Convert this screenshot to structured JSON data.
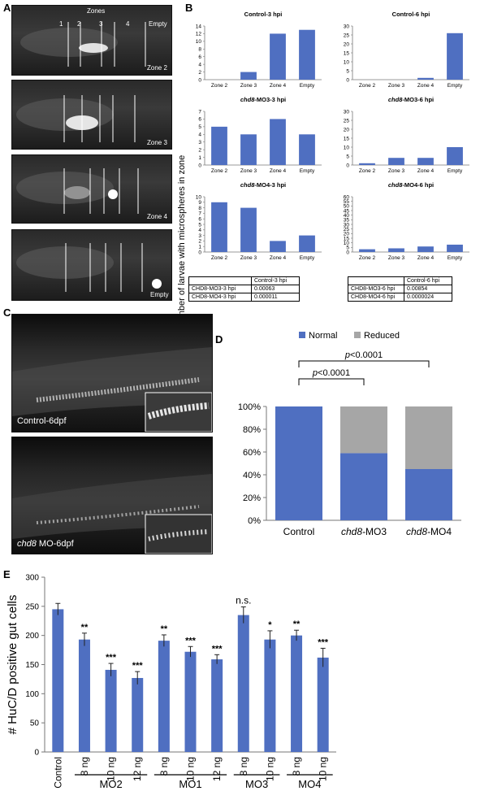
{
  "panels": {
    "A": "A",
    "B": "B",
    "C": "C",
    "D": "D",
    "E": "E"
  },
  "panelA": {
    "zones_title": "Zones",
    "zone_numbers": [
      "1",
      "2",
      "3",
      "4",
      "Empty"
    ],
    "image_labels": [
      "Zone 2",
      "Zone 3",
      "Zone 4",
      "Empty"
    ]
  },
  "panelB": {
    "ylabel": "Number of larvae with microspheres in zone",
    "table_left": {
      "header": [
        "",
        "Control-3 hpi"
      ],
      "rows": [
        [
          "CHD8-MO3-3 hpi",
          "0.00063"
        ],
        [
          "CHD8-MO4-3 hpi",
          "0.000011"
        ]
      ]
    },
    "table_right": {
      "header": [
        "",
        "Control-6 hpi"
      ],
      "rows": [
        [
          "CHD8-MO3-6 hpi",
          "0.00854"
        ],
        [
          "CHD8-MO4-6 hpi",
          "0.0000024"
        ]
      ]
    }
  },
  "panelC": {
    "labels": [
      "Control-6dpf",
      "MO-6dpf"
    ],
    "label_italic": "chd8"
  },
  "panelD": {
    "legend": [
      "Normal",
      "Reduced"
    ],
    "p1": "<0.0001",
    "p2": "<0.0001",
    "p_letter": "p"
  },
  "panelE": {
    "ylabel": "# HuC/D positive gut cells",
    "groups": [
      "MO2",
      "MO1",
      "MO3",
      "MO4"
    ]
  },
  "chart_data": [
    {
      "type": "bar",
      "title": "Control-3 hpi",
      "categories": [
        "Zone 2",
        "Zone 3",
        "Zone 4",
        "Empty"
      ],
      "values": [
        0,
        2,
        12,
        13
      ],
      "ylim": [
        0,
        14
      ],
      "yticks": [
        0,
        2,
        4,
        6,
        8,
        10,
        12,
        14
      ]
    },
    {
      "type": "bar",
      "title": "Control-6 hpi",
      "categories": [
        "Zone 2",
        "Zone 3",
        "Zone 4",
        "Empty"
      ],
      "values": [
        0,
        0,
        1,
        26
      ],
      "ylim": [
        0,
        30
      ],
      "yticks": [
        0,
        5,
        10,
        15,
        20,
        25,
        30
      ]
    },
    {
      "type": "bar",
      "title": "MO3-3 hpi",
      "title_italic": "chd8-",
      "categories": [
        "Zone 2",
        "Zone 3",
        "Zone 4",
        "Empty"
      ],
      "values": [
        5,
        4,
        6,
        4
      ],
      "ylim": [
        0,
        7
      ],
      "yticks": [
        0,
        1,
        2,
        3,
        4,
        5,
        6,
        7
      ]
    },
    {
      "type": "bar",
      "title": "MO3-6 hpi",
      "title_italic": "chd8-",
      "categories": [
        "Zone 2",
        "Zone 3",
        "Zone 4",
        "Empty"
      ],
      "values": [
        1,
        4,
        4,
        10
      ],
      "ylim": [
        0,
        30
      ],
      "yticks": [
        0,
        5,
        10,
        15,
        20,
        25,
        30
      ]
    },
    {
      "type": "bar",
      "title": "MO4-3 hpi",
      "title_italic": "chd8-",
      "categories": [
        "Zone 2",
        "Zone 3",
        "Zone 4",
        "Empty"
      ],
      "values": [
        9,
        8,
        2,
        3
      ],
      "ylim": [
        0,
        10
      ],
      "yticks": [
        0,
        1,
        2,
        3,
        4,
        5,
        6,
        7,
        8,
        9,
        10
      ]
    },
    {
      "type": "bar",
      "title": "MO4-6 hpi",
      "title_italic": "chd8-",
      "categories": [
        "Zone 2",
        "Zone 3",
        "Zone 4",
        "Empty"
      ],
      "values": [
        3,
        4,
        6,
        8
      ],
      "ylim": [
        0,
        60
      ],
      "yticks": [
        0,
        5,
        10,
        15,
        20,
        25,
        30,
        35,
        40,
        45,
        50,
        55,
        60
      ]
    },
    {
      "type": "bar",
      "stacked": true,
      "categories": [
        "Control",
        "MO3",
        "MO4"
      ],
      "category_italic": [
        "",
        "chd8-",
        "chd8-"
      ],
      "series": [
        {
          "name": "Normal",
          "values": [
            100,
            59,
            45
          ],
          "color": "#4f6fc1"
        },
        {
          "name": "Reduced",
          "values": [
            0,
            41,
            55
          ],
          "color": "#a6a6a6"
        }
      ],
      "ylim": [
        0,
        100
      ],
      "yticks": [
        "0%",
        "20%",
        "40%",
        "60%",
        "80%",
        "100%"
      ]
    },
    {
      "type": "bar",
      "categories": [
        "Control",
        "8 ng",
        "10 ng",
        "12 ng",
        "8 ng",
        "10 ng",
        "12 ng",
        "8 ng",
        "10 ng",
        "8 ng",
        "10 ng"
      ],
      "values": [
        245,
        193,
        141,
        127,
        191,
        172,
        159,
        235,
        193,
        200,
        162
      ],
      "errors": [
        10,
        11,
        11,
        11,
        10,
        9,
        8,
        14,
        15,
        9,
        16
      ],
      "significance": [
        "",
        "**",
        "***",
        "***",
        "**",
        "***",
        "***",
        "n.s.",
        "*",
        "**",
        "***"
      ],
      "ylim": [
        0,
        300
      ],
      "yticks": [
        0,
        50,
        100,
        150,
        200,
        250,
        300
      ]
    }
  ]
}
